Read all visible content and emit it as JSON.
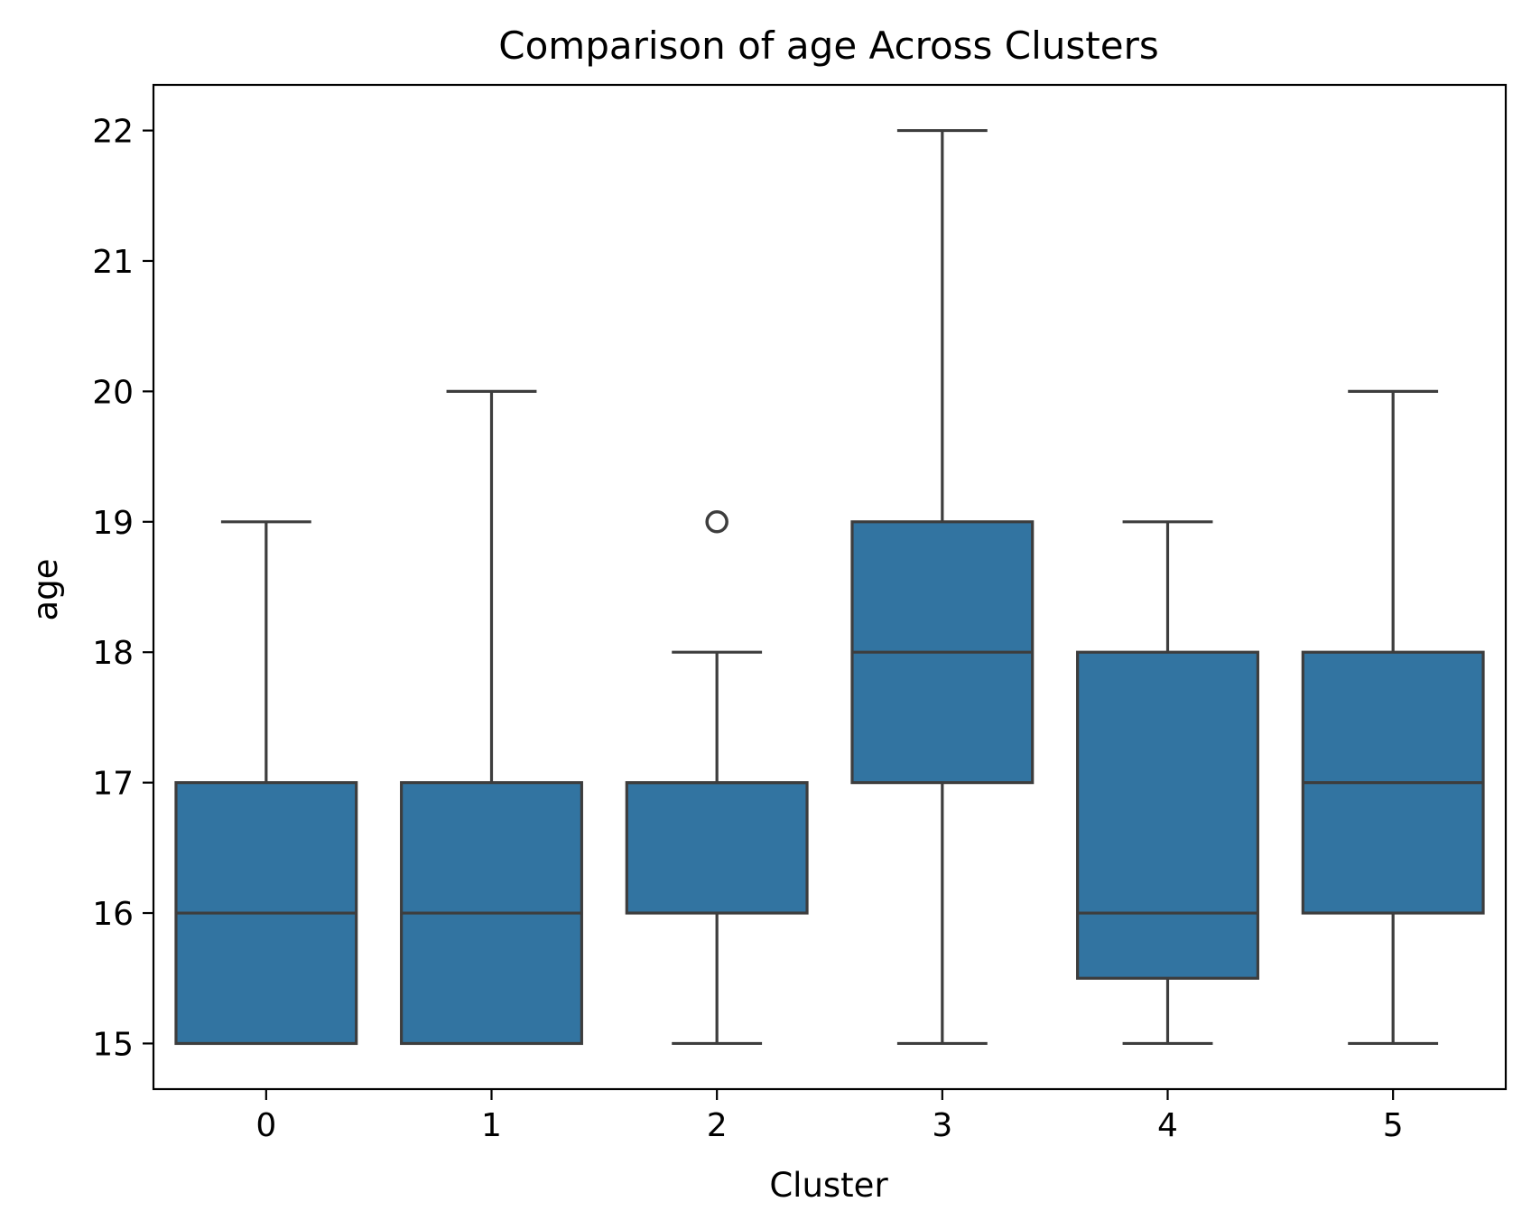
{
  "chart_data": {
    "type": "box",
    "title": "Comparison of age Across Clusters",
    "xlabel": "Cluster",
    "ylabel": "age",
    "categories": [
      "0",
      "1",
      "2",
      "3",
      "4",
      "5"
    ],
    "boxes": [
      {
        "category": "0",
        "whisker_low": 15,
        "q1": 15,
        "median": 16,
        "q3": 17,
        "whisker_high": 19,
        "outliers": []
      },
      {
        "category": "1",
        "whisker_low": 15,
        "q1": 15,
        "median": 16,
        "q3": 17,
        "whisker_high": 20,
        "outliers": []
      },
      {
        "category": "2",
        "whisker_low": 15,
        "q1": 16,
        "median": 17,
        "q3": 17,
        "whisker_high": 18,
        "outliers": [
          19
        ]
      },
      {
        "category": "3",
        "whisker_low": 15,
        "q1": 17,
        "median": 18,
        "q3": 19,
        "whisker_high": 22,
        "outliers": []
      },
      {
        "category": "4",
        "whisker_low": 15,
        "q1": 15.5,
        "median": 16,
        "q3": 18,
        "whisker_high": 19,
        "outliers": []
      },
      {
        "category": "5",
        "whisker_low": 15,
        "q1": 16,
        "median": 17,
        "q3": 18,
        "whisker_high": 20,
        "outliers": []
      }
    ],
    "y_ticks": [
      15,
      16,
      17,
      18,
      19,
      20,
      21,
      22
    ],
    "ylim": [
      14.65,
      22.35
    ],
    "xlim": [
      -0.5,
      5.5
    ],
    "grid": false,
    "legend": "none",
    "colors": {
      "box_fill": "#3274a1",
      "line": "#3d3d3d",
      "axes": "#000000"
    }
  }
}
